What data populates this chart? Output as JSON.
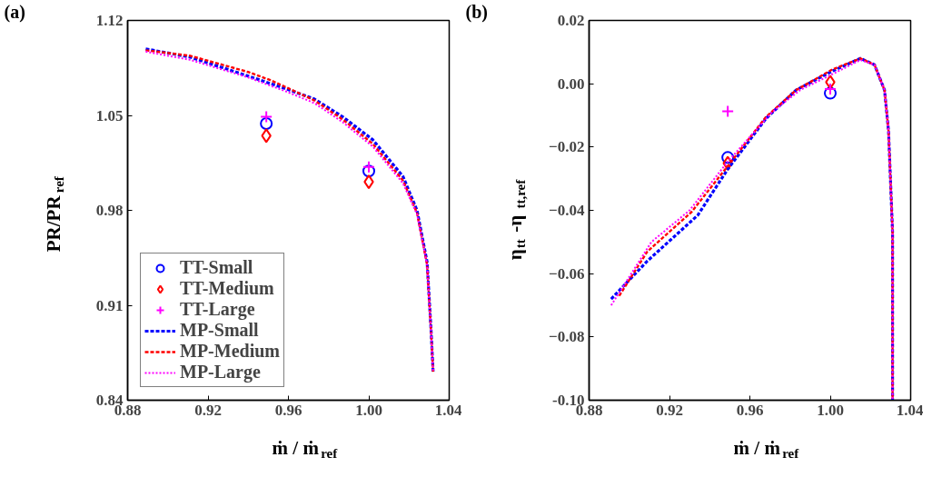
{
  "chart_data": [
    {
      "type": "line",
      "title": "(a)",
      "xlabel": "ṁ / ṁ$_{ref}$",
      "ylabel": "PR/PR$_{ref}$",
      "xlim": [
        0.88,
        1.04
      ],
      "ylim": [
        0.84,
        1.12
      ],
      "xticks": [
        0.88,
        0.92,
        0.96,
        {
          "value": 1.0,
          "label": "1.00"
        },
        1.04
      ],
      "yticks": [
        0.84,
        0.91,
        0.98,
        1.05,
        1.12
      ],
      "legend": "bottom left",
      "grid": false,
      "series": [
        {
          "name": "TT-Small",
          "type": "scatter",
          "marker": "circle",
          "color": "#0000ff",
          "x": [
            0.949,
            1.0
          ],
          "values": [
            1.044,
            1.009
          ]
        },
        {
          "name": "TT-Medium",
          "type": "scatter",
          "marker": "diamond",
          "color": "#ff0000",
          "x": [
            0.949,
            1.0
          ],
          "values": [
            1.035,
            1.001
          ]
        },
        {
          "name": "TT-Large",
          "type": "scatter",
          "marker": "cross",
          "color": "#ff00ff",
          "x": [
            0.949,
            1.0
          ],
          "values": [
            1.049,
            1.012
          ]
        },
        {
          "name": "MP-Small",
          "line_style": "dashed",
          "color": "#0000ff",
          "x": [
            0.889,
            0.911,
            0.94,
            0.96,
            0.973,
            0.987,
            1.002,
            1.017,
            1.024,
            1.029,
            1.031,
            1.032
          ],
          "values": [
            1.099,
            1.093,
            1.079,
            1.069,
            1.062,
            1.049,
            1.032,
            1.005,
            0.98,
            0.942,
            0.891,
            0.861
          ]
        },
        {
          "name": "MP-Medium",
          "line_style": "dashed",
          "color": "#ff0000",
          "x": [
            0.889,
            0.911,
            0.94,
            0.951,
            0.96,
            0.973,
            0.987,
            1.002,
            1.017,
            1.024,
            1.029,
            1.031,
            1.032
          ],
          "values": [
            1.098,
            1.094,
            1.082,
            1.076,
            1.07,
            1.061,
            1.047,
            1.029,
            1.002,
            0.978,
            0.94,
            0.89,
            0.861
          ]
        },
        {
          "name": "MP-Large",
          "line_style": "dotted",
          "color": "#ff00ff",
          "x": [
            0.889,
            0.911,
            0.94,
            0.96,
            0.973,
            0.987,
            1.002,
            1.017,
            1.024,
            1.029,
            1.031,
            1.032
          ],
          "values": [
            1.097,
            1.091,
            1.078,
            1.067,
            1.059,
            1.045,
            1.027,
            1.0,
            0.977,
            0.94,
            0.89,
            0.861
          ]
        }
      ]
    },
    {
      "type": "line",
      "title": "(b)",
      "xlabel": "ṁ / ṁ$_{ref}$",
      "ylabel": "η$_{tt}$-η$_{tt,ref}$",
      "xlim": [
        0.88,
        1.04
      ],
      "ylim": [
        -0.1,
        0.02
      ],
      "xticks": [
        0.88,
        0.92,
        0.96,
        {
          "value": 1.0,
          "label": "1.00"
        },
        1.04
      ],
      "yticks": [
        {
          "value": -0.1,
          "label": "-0.10"
        },
        -0.08,
        -0.06,
        -0.04,
        -0.02,
        {
          "value": 0.0,
          "label": "0.00"
        },
        0.02
      ],
      "grid": false,
      "series": [
        {
          "type": "scatter",
          "marker": "circle",
          "color": "#0000ff",
          "x": [
            0.949,
            1.0
          ],
          "values": [
            -0.0233,
            -0.003
          ]
        },
        {
          "type": "scatter",
          "marker": "diamond",
          "color": "#ff0000",
          "x": [
            0.949,
            1.0
          ],
          "values": [
            -0.0251,
            0.0005
          ]
        },
        {
          "type": "scatter",
          "marker": "cross",
          "color": "#ff00ff",
          "x": [
            0.949,
            1.0
          ],
          "values": [
            -0.0087,
            -0.0017
          ]
        },
        {
          "line_style": "dashed",
          "color": "#0000ff",
          "x": [
            0.891,
            0.909,
            0.934,
            0.949,
            0.968,
            0.983,
            1.001,
            1.015,
            1.022,
            1.027,
            1.029,
            1.031,
            1.031
          ],
          "values": [
            -0.068,
            -0.056,
            -0.0416,
            -0.027,
            -0.011,
            -0.002,
            0.004,
            0.008,
            0.006,
            -0.002,
            -0.015,
            -0.047,
            -0.1
          ]
        },
        {
          "line_style": "dashed",
          "color": "#ff0000",
          "x": [
            0.895,
            0.909,
            0.931,
            0.949,
            0.968,
            0.983,
            1.001,
            1.015,
            1.022,
            1.027,
            1.029,
            1.031,
            1.031
          ],
          "values": [
            -0.067,
            -0.053,
            -0.0405,
            -0.026,
            -0.0105,
            -0.002,
            0.0045,
            0.008,
            0.006,
            -0.002,
            -0.015,
            -0.047,
            -0.1
          ]
        },
        {
          "line_style": "dotted",
          "color": "#ff00ff",
          "x": [
            0.891,
            0.911,
            0.93,
            0.949,
            0.971,
            0.985,
            1.001,
            1.015,
            1.022,
            1.027,
            1.029,
            1.031,
            1.031
          ],
          "values": [
            -0.07,
            -0.05,
            -0.04,
            -0.0246,
            -0.009,
            -0.002,
            0.003,
            0.0075,
            0.006,
            -0.002,
            -0.015,
            -0.047,
            -0.1
          ]
        }
      ]
    }
  ]
}
